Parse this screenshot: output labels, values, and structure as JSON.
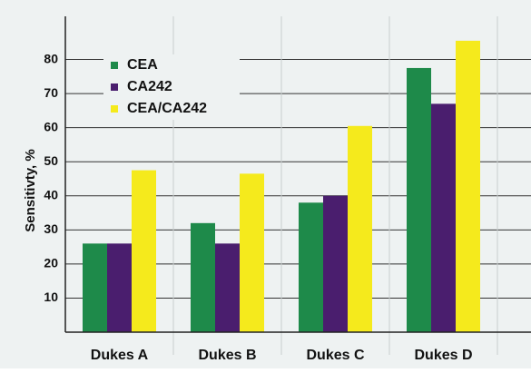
{
  "chart_data": {
    "type": "bar",
    "y_label": "Sensitivty, %",
    "categories": [
      "Dukes A",
      "Dukes B",
      "Dukes C",
      "Dukes D"
    ],
    "series": [
      {
        "name": "CEA",
        "color": "#1e8a4a",
        "values": [
          26,
          32,
          38,
          77.5
        ]
      },
      {
        "name": "CA242",
        "color": "#4a1e6e",
        "values": [
          26,
          26,
          40,
          67
        ]
      },
      {
        "name": "CEA/CA242",
        "color": "#f5ea1c",
        "values": [
          47.5,
          46.5,
          60.5,
          85.5
        ]
      }
    ],
    "ylim": [
      0,
      90
    ],
    "yticks": [
      10,
      20,
      30,
      40,
      50,
      60,
      70,
      80
    ],
    "grid": true
  }
}
